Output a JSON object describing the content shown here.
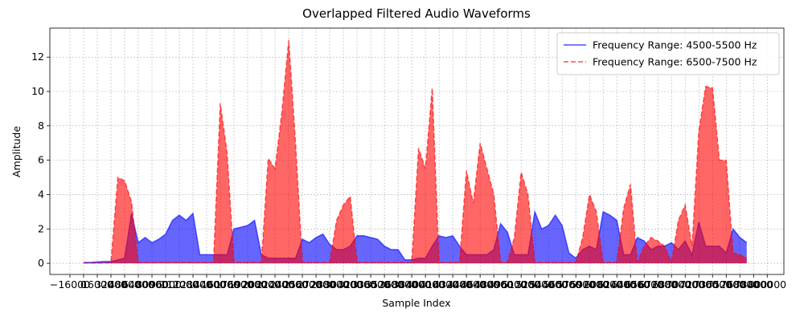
{
  "chart_data": {
    "type": "area",
    "title": "Overlapped Filtered Audio Waveforms",
    "x_label": "Sample Index",
    "y_label": "Amplitude",
    "grid": true,
    "legend": "upper right",
    "x": [
      0,
      8000,
      16000,
      24000,
      32000,
      40000,
      48000,
      56000,
      64000,
      72000,
      80000,
      88000,
      96000,
      104000,
      112000,
      120000,
      128000,
      136000,
      144000,
      152000,
      160000,
      168000,
      176000,
      184000,
      192000,
      200000,
      208000,
      216000,
      224000,
      232000,
      240000,
      248000,
      256000,
      264000,
      272000,
      280000,
      288000,
      296000,
      304000,
      312000,
      320000,
      328000,
      336000,
      344000,
      352000,
      360000,
      368000,
      376000,
      384000,
      392000,
      400000,
      408000,
      416000,
      424000,
      432000,
      440000,
      448000,
      456000,
      464000,
      472000,
      480000,
      488000,
      496000,
      504000,
      512000,
      520000,
      528000,
      536000,
      544000,
      552000,
      560000,
      568000,
      576000,
      584000,
      592000,
      600000,
      608000,
      616000,
      624000,
      632000,
      640000,
      648000,
      656000,
      664000,
      672000,
      680000,
      688000,
      696000,
      704000,
      712000,
      720000,
      728000,
      736000,
      744000,
      752000,
      760000,
      768000,
      776000
    ],
    "series": [
      {
        "name": "Frequency Range: 4500-5500 Hz",
        "color": "#0000ff",
        "dashed": false,
        "values": [
          0.05,
          0.05,
          0.08,
          0.1,
          0.1,
          0.2,
          0.3,
          2.9,
          1.2,
          1.5,
          1.2,
          1.4,
          1.7,
          2.5,
          2.8,
          2.5,
          2.9,
          0.5,
          0.5,
          0.5,
          0.5,
          0.5,
          2.0,
          2.1,
          2.2,
          2.5,
          0.5,
          0.3,
          0.3,
          0.3,
          0.3,
          0.3,
          1.4,
          1.2,
          1.5,
          1.7,
          1.1,
          0.8,
          0.8,
          1.0,
          1.6,
          1.6,
          1.5,
          1.4,
          1.0,
          0.8,
          0.8,
          0.2,
          0.2,
          0.3,
          0.3,
          1.0,
          1.6,
          1.5,
          1.6,
          1.0,
          0.5,
          0.5,
          0.5,
          0.5,
          0.8,
          2.3,
          1.8,
          0.5,
          0.5,
          0.5,
          3.0,
          2.0,
          2.2,
          2.8,
          2.2,
          0.6,
          0.3,
          0.8,
          1.0,
          0.8,
          3.0,
          2.8,
          2.5,
          0.5,
          0.5,
          1.5,
          1.3,
          0.8,
          1.0,
          1.0,
          1.2,
          0.8,
          1.3,
          0.5,
          2.4,
          1.0,
          1.0,
          1.0,
          0.6,
          2.0,
          1.5,
          1.2
        ]
      },
      {
        "name": "Frequency Range: 6500-7500 Hz",
        "color": "#ff0000",
        "dashed": true,
        "values": [
          0.02,
          0.02,
          0.02,
          0.02,
          0.05,
          5.0,
          4.8,
          3.6,
          0.05,
          0.05,
          0.05,
          0.05,
          0.05,
          0.05,
          0.05,
          0.05,
          0.05,
          0.05,
          0.05,
          0.05,
          9.3,
          6.4,
          0.05,
          0.05,
          0.05,
          0.05,
          0.05,
          6.1,
          5.5,
          8.8,
          13.0,
          7.0,
          0.05,
          0.05,
          0.05,
          0.05,
          0.05,
          2.5,
          3.4,
          3.9,
          0.05,
          0.05,
          0.05,
          0.05,
          0.05,
          0.05,
          0.05,
          0.05,
          0.05,
          6.7,
          5.5,
          10.2,
          0.05,
          0.05,
          0.05,
          0.05,
          5.4,
          3.5,
          7.0,
          5.5,
          4.0,
          0.05,
          0.05,
          1.5,
          5.3,
          4.0,
          0.05,
          0.05,
          0.05,
          0.05,
          0.05,
          0.05,
          0.05,
          1.5,
          4.0,
          3.0,
          0.05,
          0.05,
          0.05,
          3.2,
          4.6,
          0.05,
          1.0,
          1.5,
          1.3,
          1.0,
          0.05,
          2.5,
          3.4,
          1.0,
          7.7,
          10.3,
          10.2,
          6.0,
          6.0,
          0.6,
          0.5,
          0.3
        ]
      }
    ],
    "xlim": [
      -39500,
      819500
    ],
    "xticks": [
      {
        "value": -16000,
        "label": "−16000"
      },
      0,
      16000,
      32000,
      48000,
      64000,
      80000,
      96000,
      112000,
      128000,
      144000,
      160000,
      176000,
      192000,
      208000,
      224000,
      240000,
      256000,
      272000,
      288000,
      304000,
      320000,
      336000,
      352000,
      368000,
      384000,
      400000,
      416000,
      432000,
      448000,
      464000,
      480000,
      496000,
      512000,
      528000,
      544000,
      560000,
      576000,
      592000,
      608000,
      624000,
      640000,
      656000,
      672000,
      688000,
      704000,
      720000,
      736000,
      752000,
      768000,
      784000,
      800000
    ],
    "ylim": [
      -0.65,
      13.69
    ],
    "yticks": [
      0,
      2,
      4,
      6,
      8,
      10,
      12
    ]
  }
}
